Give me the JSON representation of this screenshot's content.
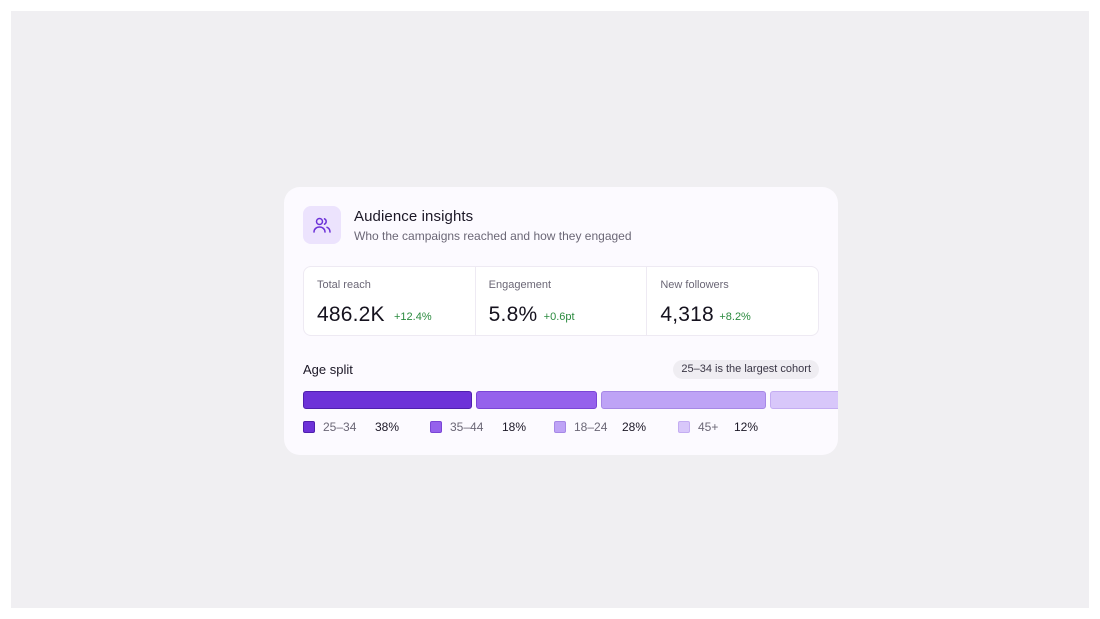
{
  "card": {
    "title": "Audience insights",
    "subtitle": "Who the campaigns reached and how they engaged",
    "icon": "users-icon"
  },
  "metrics": [
    {
      "label": "Total reach",
      "value": "486.2K",
      "delta": "+12.4%"
    },
    {
      "label": "Engagement",
      "value": "5.8%",
      "delta": "+0.6pt"
    },
    {
      "label": "New followers",
      "value": "4,318",
      "delta": "+8.2%"
    }
  ],
  "age_split": {
    "title": "Age split",
    "badge": "25–34 is the largest cohort",
    "segments": [
      {
        "label": "25–34",
        "pct": "38%",
        "share": 38,
        "color": "#6d32d8",
        "border": "#4f1fae"
      },
      {
        "label": "35–44",
        "pct": "18%",
        "share": 18,
        "color": "#9561ec",
        "border": "#7a45d6"
      },
      {
        "label": "18–24",
        "pct": "28%",
        "share": 28,
        "color": "#bea3f6",
        "border": "#a688e6"
      },
      {
        "label": "45+",
        "pct": "12%",
        "share": 12,
        "color": "#d8c7fa",
        "border": "#c4adf2"
      }
    ]
  },
  "colors": {
    "accent": "#6d32d8",
    "positive": "#2a8a3e"
  }
}
